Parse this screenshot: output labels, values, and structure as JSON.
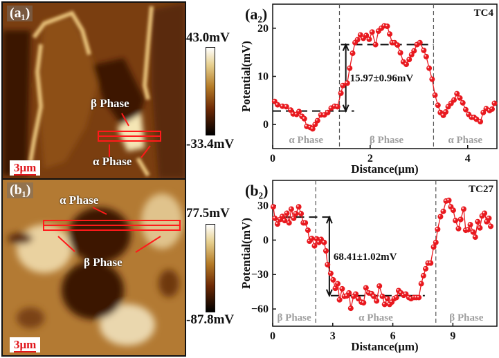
{
  "panels": {
    "a1": {
      "label": "(a₁)",
      "colorbar_max": "43.0mV",
      "colorbar_min": "-33.4mV",
      "scale_bar": "3μm",
      "annotations": [
        "β Phase",
        "α Phase"
      ]
    },
    "b1": {
      "label": "(b₁)",
      "colorbar_max": "77.5mV",
      "colorbar_min": "-87.8mV",
      "scale_bar": "3μm",
      "annotations": [
        "α Phase",
        "β Phase"
      ]
    }
  },
  "colors": {
    "series": "#e8191f",
    "phase_text": "#a0a0a0",
    "map_annotation": "#ff1a1a"
  },
  "chart_data": [
    {
      "type": "line",
      "panel_label": "(a₂)",
      "sample": "TC4",
      "xlabel": "Distance(μm)",
      "ylabel": "Potential(mV)",
      "xlim": [
        0,
        4.6
      ],
      "ylim": [
        -5,
        25
      ],
      "xticks": [
        0,
        2,
        4
      ],
      "yticks": [
        0,
        10,
        20
      ],
      "phase_boundaries": [
        1.37,
        3.3
      ],
      "phase_labels": [
        "α Phase",
        "β Phase",
        "α Phase"
      ],
      "levels": [
        {
          "y": 2.8,
          "x": [
            0,
            1.67
          ]
        },
        {
          "y": 16.6,
          "x": [
            1.4,
            3.3
          ]
        }
      ],
      "arrow": {
        "x": 1.5,
        "from": 2.8,
        "to": 16.6
      },
      "annotation": "15.97±0.96mV",
      "x": [
        0.04,
        0.1,
        0.2,
        0.28,
        0.37,
        0.42,
        0.49,
        0.54,
        0.6,
        0.65,
        0.7,
        0.77,
        0.82,
        0.87,
        0.92,
        0.99,
        1.06,
        1.13,
        1.2,
        1.27,
        1.33,
        1.4,
        1.44,
        1.53,
        1.58,
        1.64,
        1.69,
        1.74,
        1.8,
        1.86,
        1.92,
        1.98,
        2.04,
        2.11,
        2.17,
        2.23,
        2.29,
        2.35,
        2.4,
        2.45,
        2.5,
        2.56,
        2.62,
        2.68,
        2.74,
        2.8,
        2.85,
        2.9,
        2.96,
        3.02,
        3.1,
        3.15,
        3.21,
        3.27,
        3.33,
        3.39,
        3.44,
        3.5,
        3.55,
        3.6,
        3.66,
        3.72,
        3.78,
        3.84,
        3.9,
        3.96,
        4.02,
        4.08,
        4.13,
        4.18,
        4.26,
        4.32,
        4.38,
        4.45,
        4.5,
        4.55
      ],
      "y": [
        4.8,
        4.1,
        3.8,
        3.7,
        3.0,
        2.2,
        2.1,
        2.7,
        1.7,
        1.2,
        -0.4,
        -0.6,
        -0.9,
        0,
        0.8,
        2.0,
        2.0,
        2.5,
        3.4,
        3.8,
        3.7,
        6.5,
        8.1,
        8.6,
        11.7,
        14.8,
        17.0,
        17.6,
        18.6,
        17.9,
        18.5,
        17.7,
        19.2,
        16.6,
        19.4,
        20.0,
        20.5,
        20.4,
        18.8,
        17.0,
        17.0,
        16.5,
        14.9,
        13.0,
        12.5,
        13.5,
        14.5,
        15.3,
        16.6,
        17.0,
        15.4,
        14.1,
        11.7,
        9.4,
        6.1,
        4.0,
        2.5,
        1.9,
        2.6,
        3.7,
        4.4,
        5.1,
        6.4,
        5.5,
        4.5,
        3.1,
        2.1,
        1.5,
        1.5,
        1.1,
        0.6,
        2.5,
        3.3,
        2.9,
        3.2,
        4.4
      ]
    },
    {
      "type": "line",
      "panel_label": "(b₂)",
      "sample": "TC27",
      "xlabel": "Distance(μm)",
      "ylabel": "Potential(mV)",
      "xlim": [
        0,
        11.2
      ],
      "ylim": [
        -75,
        52
      ],
      "xticks": [
        0,
        3,
        6,
        9
      ],
      "yticks": [
        -60,
        -30,
        0,
        30
      ],
      "phase_boundaries": [
        2.15,
        8.15
      ],
      "phase_labels": [
        "β Phase",
        "α Phase",
        "β Phase"
      ],
      "levels": [
        {
          "y": 20,
          "x": [
            0.5,
            3.0
          ]
        },
        {
          "y": -48.4,
          "x": [
            2.9,
            7.6
          ]
        }
      ],
      "arrow": {
        "x": 2.83,
        "from": 20,
        "to": -48.4
      },
      "annotation": "68.41±1.02mV",
      "x": [
        0.03,
        0.11,
        0.24,
        0.37,
        0.48,
        0.6,
        0.71,
        0.82,
        0.93,
        1.05,
        1.16,
        1.3,
        1.42,
        1.53,
        1.63,
        1.76,
        1.84,
        1.95,
        2.09,
        2.2,
        2.31,
        2.42,
        2.57,
        2.66,
        2.74,
        2.9,
        3.02,
        3.13,
        3.25,
        3.34,
        3.47,
        3.58,
        3.7,
        3.81,
        3.9,
        4.04,
        4.15,
        4.28,
        4.43,
        4.54,
        4.66,
        4.8,
        4.94,
        5.05,
        5.19,
        5.33,
        5.48,
        5.59,
        5.73,
        5.84,
        5.95,
        6.07,
        6.18,
        6.29,
        6.41,
        6.54,
        6.65,
        6.8,
        6.91,
        7.05,
        7.17,
        7.3,
        7.42,
        7.53,
        7.64,
        7.76,
        7.89,
        8.04,
        8.15,
        8.24,
        8.38,
        8.52,
        8.66,
        8.8,
        8.9,
        9.02,
        9.13,
        9.28,
        9.39,
        9.54,
        9.64,
        9.76,
        9.87,
        10.01,
        10.12,
        10.24,
        10.35,
        10.46,
        10.58,
        10.69,
        10.8,
        10.89
      ],
      "y": [
        29,
        19,
        14,
        18,
        20.6,
        17,
        23.4,
        15,
        27,
        19,
        23,
        29,
        23,
        15,
        15,
        8.6,
        -1,
        1.4,
        -5,
        1,
        -2,
        0.6,
        -2,
        -9.4,
        -21.4,
        -29,
        -34.6,
        -42,
        -38,
        -52,
        -42.4,
        -49,
        -48.6,
        -46,
        -59.4,
        -49,
        -47,
        -51,
        -54,
        -54.6,
        -41.6,
        -46,
        -46.6,
        -49,
        -53,
        -40,
        -49,
        -56,
        -51,
        -56,
        -54,
        -51,
        -50,
        -44,
        -46,
        -48,
        -47,
        -50,
        -51,
        -50,
        -50,
        -50,
        -38,
        -31,
        -25,
        -20,
        -20,
        -6,
        -2,
        9.4,
        20.4,
        25,
        34,
        34.6,
        29,
        26,
        17,
        10,
        18,
        27,
        8.6,
        9,
        13.4,
        7,
        2.6,
        16,
        10.6,
        21,
        23.4,
        16,
        19,
        12
      ]
    }
  ]
}
